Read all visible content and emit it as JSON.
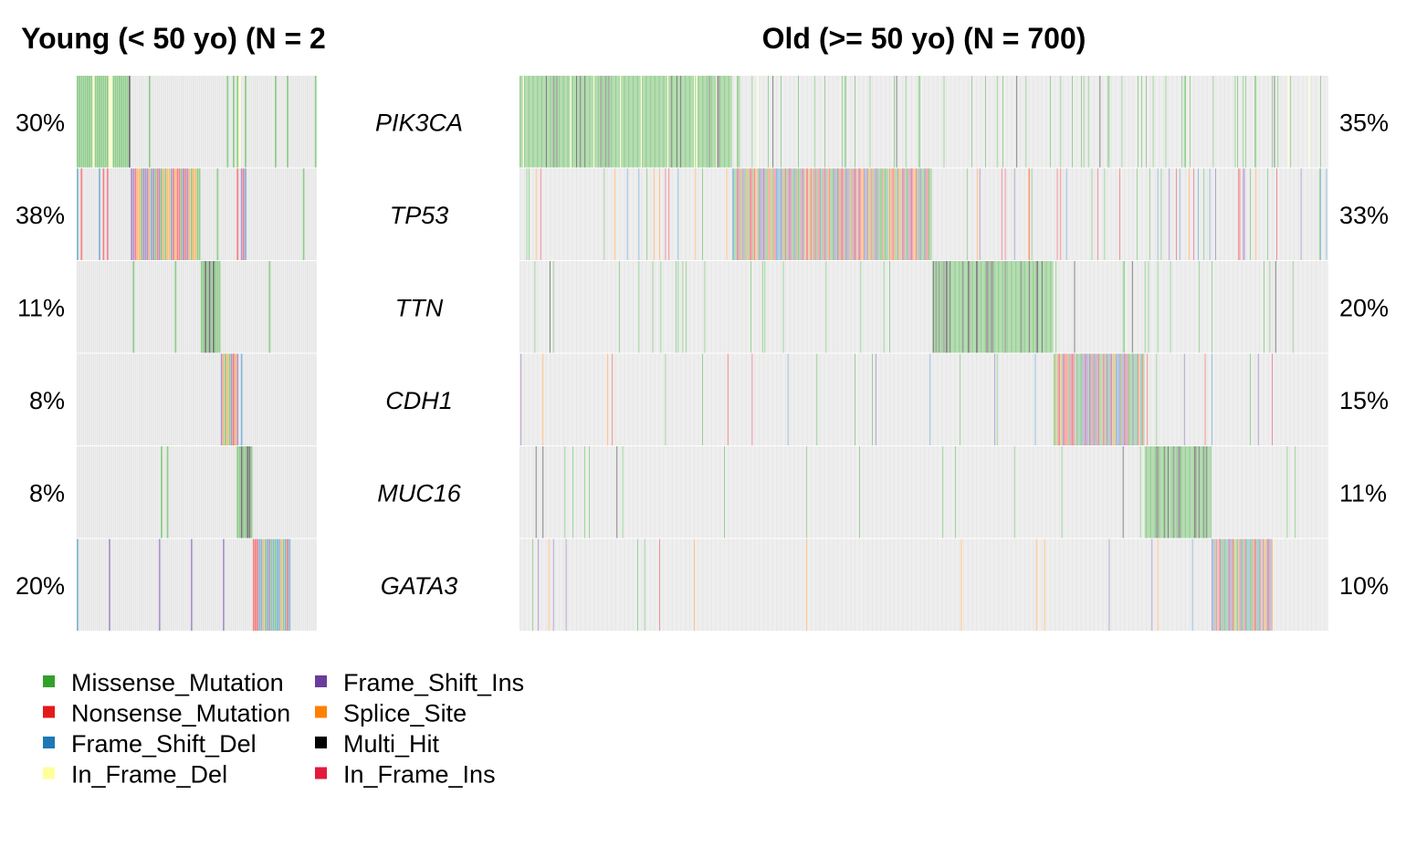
{
  "chart_data": [
    {
      "type": "heatmap",
      "title": "Young (< 50 yo) (N = 2",
      "samples_drawn": 120,
      "genes": [
        "PIK3CA",
        "TP53",
        "TTN",
        "CDH1",
        "MUC16",
        "GATA3"
      ],
      "frequencies": [
        "30%",
        "38%",
        "11%",
        "8%",
        "8%",
        "20%"
      ],
      "altered_fraction": [
        0.3,
        0.38,
        0.11,
        0.08,
        0.08,
        0.2
      ]
    },
    {
      "type": "heatmap",
      "title": "Old (>= 50 yo) (N = 700)",
      "samples_drawn": 700,
      "genes": [
        "PIK3CA",
        "TP53",
        "TTN",
        "CDH1",
        "MUC16",
        "GATA3"
      ],
      "frequencies": [
        "35%",
        "33%",
        "20%",
        "15%",
        "11%",
        "10%"
      ],
      "altered_fraction": [
        0.35,
        0.33,
        0.2,
        0.15,
        0.11,
        0.1
      ]
    }
  ],
  "legend": {
    "items": [
      {
        "label": "Missense_Mutation",
        "color": "#33a02c"
      },
      {
        "label": "Nonsense_Mutation",
        "color": "#e31a1c"
      },
      {
        "label": "Frame_Shift_Del",
        "color": "#1f78b4"
      },
      {
        "label": "In_Frame_Del",
        "color": "#ffff99"
      },
      {
        "label": "Frame_Shift_Ins",
        "color": "#6a3d9a"
      },
      {
        "label": "Splice_Site",
        "color": "#ff7f00"
      },
      {
        "label": "Multi_Hit",
        "color": "#000000"
      },
      {
        "label": "In_Frame_Ins",
        "color": "#e31a3c"
      }
    ]
  },
  "colors": {
    "background_cell": "#e6e6e6",
    "cell_separator": "#ffffff"
  }
}
